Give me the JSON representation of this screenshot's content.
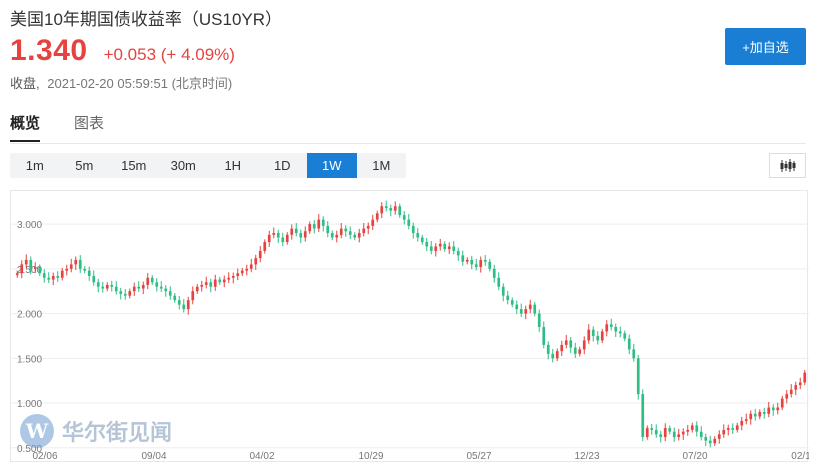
{
  "header": {
    "title": "美国10年期国债收益率（US10YR）",
    "price": "1.340",
    "change": "+0.053 (+ 4.09%)",
    "close_label": "收盘,",
    "close_time": "2021-02-20 05:59:51 (北京时间)",
    "add_watch_label": "+加自选"
  },
  "tabs": [
    {
      "label": "概览",
      "active": true
    },
    {
      "label": "图表",
      "active": false
    }
  ],
  "periods": [
    {
      "label": "1m",
      "active": false
    },
    {
      "label": "5m",
      "active": false
    },
    {
      "label": "15m",
      "active": false
    },
    {
      "label": "30m",
      "active": false
    },
    {
      "label": "1H",
      "active": false
    },
    {
      "label": "1D",
      "active": false
    },
    {
      "label": "1W",
      "active": true
    },
    {
      "label": "1M",
      "active": false
    }
  ],
  "chart_type_icon": "candlestick-icon",
  "watermark": {
    "logo_letter": "W",
    "text": "华尔街见闻"
  },
  "colors": {
    "up": "#e64340",
    "down": "#2ebd85",
    "accent": "#1a7fd4"
  },
  "chart_data": {
    "type": "candlestick",
    "y_ticks": [
      "3.000",
      "2.500",
      "2.000",
      "1.500",
      "1.000",
      "0.500"
    ],
    "y_tick_values": [
      3.0,
      2.5,
      2.0,
      1.5,
      1.0,
      0.5
    ],
    "x_ticks": [
      "02/06",
      "09/04",
      "04/02",
      "10/29",
      "05/27",
      "12/23",
      "07/20",
      "02/1"
    ],
    "ylim": [
      0.33,
      3.37
    ],
    "grid": true,
    "close_series": [
      2.45,
      2.55,
      2.6,
      2.5,
      2.52,
      2.45,
      2.4,
      2.38,
      2.42,
      2.4,
      2.48,
      2.5,
      2.55,
      2.6,
      2.5,
      2.48,
      2.42,
      2.35,
      2.3,
      2.28,
      2.32,
      2.3,
      2.25,
      2.22,
      2.2,
      2.25,
      2.3,
      2.28,
      2.32,
      2.4,
      2.35,
      2.3,
      2.28,
      2.25,
      2.2,
      2.15,
      2.1,
      2.05,
      2.15,
      2.25,
      2.3,
      2.32,
      2.35,
      2.3,
      2.38,
      2.35,
      2.38,
      2.4,
      2.42,
      2.45,
      2.48,
      2.5,
      2.55,
      2.62,
      2.7,
      2.8,
      2.88,
      2.9,
      2.85,
      2.8,
      2.88,
      2.95,
      2.9,
      2.85,
      2.92,
      3.0,
      2.95,
      3.05,
      2.98,
      2.9,
      2.85,
      2.88,
      2.95,
      2.92,
      2.88,
      2.85,
      2.9,
      2.95,
      2.98,
      3.05,
      3.12,
      3.2,
      3.18,
      3.15,
      3.2,
      3.1,
      3.05,
      2.98,
      2.9,
      2.85,
      2.8,
      2.75,
      2.7,
      2.75,
      2.78,
      2.72,
      2.75,
      2.7,
      2.65,
      2.58,
      2.6,
      2.55,
      2.52,
      2.6,
      2.58,
      2.5,
      2.4,
      2.3,
      2.2,
      2.15,
      2.1,
      2.05,
      2.0,
      2.05,
      2.1,
      2.0,
      1.85,
      1.65,
      1.55,
      1.5,
      1.58,
      1.65,
      1.7,
      1.62,
      1.55,
      1.6,
      1.7,
      1.82,
      1.75,
      1.7,
      1.8,
      1.88,
      1.85,
      1.8,
      1.78,
      1.72,
      1.6,
      1.5,
      1.1,
      0.62,
      0.72,
      0.7,
      0.65,
      0.62,
      0.72,
      0.68,
      0.62,
      0.65,
      0.68,
      0.7,
      0.75,
      0.68,
      0.62,
      0.58,
      0.55,
      0.6,
      0.65,
      0.7,
      0.72,
      0.7,
      0.75,
      0.8,
      0.82,
      0.88,
      0.85,
      0.9,
      0.88,
      0.95,
      0.92,
      0.95,
      1.05,
      1.1,
      1.15,
      1.2,
      1.23,
      1.34
    ]
  }
}
